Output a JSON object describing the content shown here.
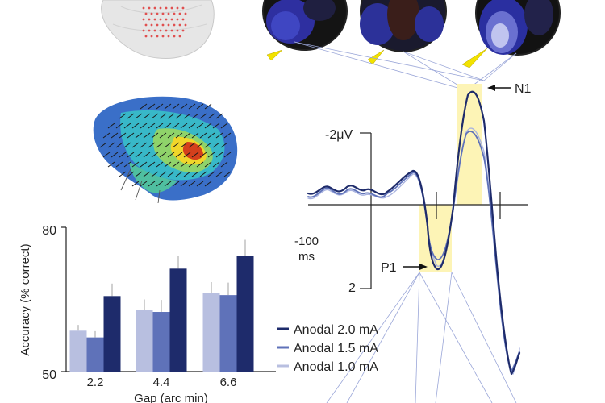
{
  "chart_data": [
    {
      "type": "bar",
      "categories": [
        "2.2",
        "4.4",
        "6.6"
      ],
      "ylabel": "Accuracy (% correct)",
      "xlabel": "Gap (arc min)",
      "ylim": [
        50,
        80
      ],
      "yticks": [
        "80",
        "50"
      ],
      "series": [
        {
          "name": "Anodal 1.0 mA",
          "color": "#b8bfe0",
          "values": [
            58.5,
            62.8,
            66.3
          ],
          "errors": [
            1.2,
            2.2,
            2.3
          ]
        },
        {
          "name": "Anodal 1.5 mA",
          "color": "#5f72b9",
          "values": [
            57.1,
            62.4,
            65.9
          ],
          "errors": [
            1.3,
            2.5,
            2.6
          ]
        },
        {
          "name": "Anodal 2.0 mA",
          "color": "#1e2b6b",
          "values": [
            65.7,
            71.4,
            74.1
          ],
          "errors": [
            2.6,
            2.6,
            3.3
          ]
        }
      ]
    },
    {
      "type": "line",
      "title": "",
      "ylabel": "-2μV",
      "ytick_bottom": "2",
      "xlabel": "-100 ms",
      "peak_labels": [
        "N1",
        "P1"
      ],
      "series": [
        {
          "name": "Anodal 2.0 mA",
          "color": "#1e2b6b"
        },
        {
          "name": "Anodal 1.5 mA",
          "color": "#5f72b9"
        },
        {
          "name": "Anodal 1.0 mA",
          "color": "#aab4e0"
        }
      ]
    }
  ]
}
